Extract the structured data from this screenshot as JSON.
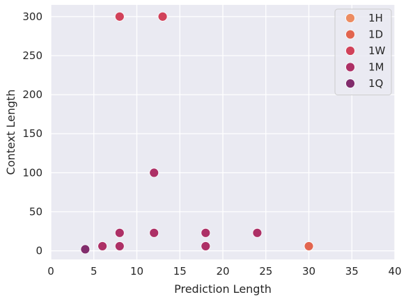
{
  "chart_data": {
    "type": "scatter",
    "xlabel": "Prediction Length",
    "ylabel": "Context Length",
    "xlim": [
      0,
      40
    ],
    "ylim": [
      -11,
      315
    ],
    "xticks": [
      "0",
      "5",
      "10",
      "15",
      "20",
      "25",
      "30",
      "35",
      "40"
    ],
    "yticks": [
      "0",
      "50",
      "100",
      "150",
      "200",
      "250",
      "300"
    ],
    "grid": true,
    "legend_position": "top-right",
    "series": [
      {
        "name": "1H",
        "color": "#ec8c62",
        "points": []
      },
      {
        "name": "1D",
        "color": "#e2654f",
        "points": [
          [
            30,
            6
          ]
        ]
      },
      {
        "name": "1W",
        "color": "#d1425a",
        "points": [
          [
            8,
            300
          ],
          [
            13,
            300
          ]
        ]
      },
      {
        "name": "1M",
        "color": "#ad3066",
        "points": [
          [
            12,
            100
          ],
          [
            8,
            23
          ],
          [
            12,
            23
          ],
          [
            18,
            23
          ],
          [
            24,
            23
          ],
          [
            6,
            6
          ],
          [
            8,
            6
          ],
          [
            18,
            6
          ]
        ]
      },
      {
        "name": "1Q",
        "color": "#812c6c",
        "points": [
          [
            4,
            2
          ]
        ]
      }
    ]
  }
}
